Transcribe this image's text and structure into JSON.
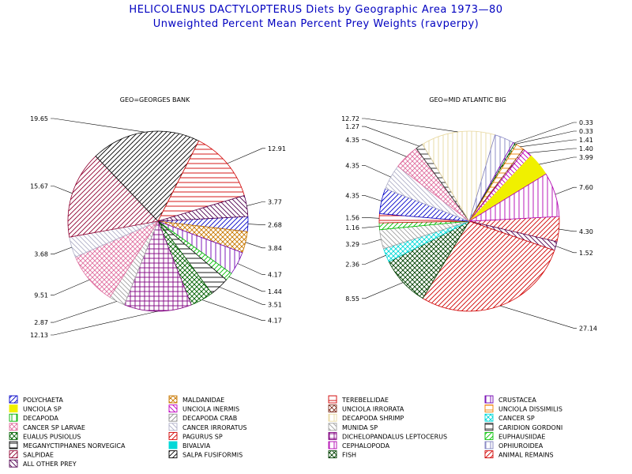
{
  "header": {
    "title": "HELICOLENUS DACTYLOPTERUS Diets by Geographic Area 1973—80",
    "subtitle": "Unweighted Percent Mean Percent Prey  Weights (ravperpy)"
  },
  "chart_data": [
    {
      "type": "pie",
      "title": "GEO=GEORGES BANK",
      "slices": [
        {
          "label": "POLYCHAETA",
          "value": 2.68
        },
        {
          "label": "MALDANIDAE",
          "value": 3.84
        },
        {
          "label": "CRUSTACEA",
          "value": 4.17
        },
        {
          "label": "EUPHAUSIIDAE",
          "value": 1.44
        },
        {
          "label": "MEGANYCTIPHANES NORVEGICA",
          "value": 3.51
        },
        {
          "label": "EUALUS PUSIOLUS",
          "value": 4.17
        },
        {
          "label": "DICHELOPANDALUS LEPTOCERUS",
          "value": 12.13
        },
        {
          "label": "MUNIDA SP",
          "value": 2.87
        },
        {
          "label": "CANCER SP LARVAE",
          "value": 9.51
        },
        {
          "label": "CANCER IRRORATUS",
          "value": 3.68
        },
        {
          "label": "SALPIDAE",
          "value": 15.67
        },
        {
          "label": "SALPA FUSIFORMIS",
          "value": 19.65
        },
        {
          "label": "TEREBELLIDAE",
          "value": 12.91
        },
        {
          "label": "ALL OTHER PREY",
          "value": 3.77
        }
      ],
      "value_labels": [
        "2.68",
        "3.84",
        "4.17",
        "1.44",
        "3.51",
        "4.17",
        "12.13",
        "2.87",
        "9.51",
        "3.68",
        "15.67",
        "19.65",
        "12.91",
        "3.77"
      ]
    },
    {
      "type": "pie",
      "title": "GEO=MID ATLANTIC BIG",
      "slices": [
        {
          "label": "PAGURUS SP",
          "value": 4.3
        },
        {
          "label": "ALL OTHER PREY",
          "value": 1.52
        },
        {
          "label": "ANIMAL REMAINS",
          "value": 27.14
        },
        {
          "label": "FISH",
          "value": 8.55
        },
        {
          "label": "CANCER SP",
          "value": 2.36
        },
        {
          "label": "MUNIDA SP",
          "value": 3.29
        },
        {
          "label": "EUPHAUSIIDAE",
          "value": 1.16
        },
        {
          "label": "TEREBELLIDAE",
          "value": 1.56
        },
        {
          "label": "POLYCHAETA",
          "value": 4.35
        },
        {
          "label": "CANCER IRRORATUS",
          "value": 4.35
        },
        {
          "label": "CANCER SP LARVAE",
          "value": 4.35
        },
        {
          "label": "CARIDION GORDONI",
          "value": 1.27
        },
        {
          "label": "DECAPODA SHRIMP",
          "value": 12.72
        },
        {
          "label": "OPHIUROIDEA",
          "value": 3.33
        },
        {
          "label": "CRUSTACEA",
          "value": 0.33
        },
        {
          "label": "EUALUS PUSIOLUS",
          "value": 0.33
        },
        {
          "label": "UNCIOLA DISSIMILIS",
          "value": 1.41
        },
        {
          "label": "UNCIOLA IRRORATA",
          "value": 0.3
        },
        {
          "label": "UNCIOLA INERMIS",
          "value": 1.4
        },
        {
          "label": "UNCIOLA SP",
          "value": 3.99
        },
        {
          "label": "CEPHALOPODA",
          "value": 7.6
        }
      ],
      "value_labels": [
        "4.30",
        "1.52",
        "27.14",
        "8.55",
        "2.36",
        "3.29",
        "1.16",
        "1.56",
        "4.35",
        "4.35",
        "4.35",
        "1.27",
        "12.72",
        "",
        "0.33",
        "0.33",
        "1.41",
        "",
        "1.40",
        "3.99",
        "7.60"
      ]
    }
  ],
  "legend": {
    "items": [
      {
        "label": "POLYCHAETA",
        "color": "#0000c8",
        "pattern": "fwd"
      },
      {
        "label": "MALDANIDAE",
        "color": "#c87800",
        "pattern": "cross"
      },
      {
        "label": "TEREBELLIDAE",
        "color": "#d00000",
        "pattern": "horiz"
      },
      {
        "label": "CRUSTACEA",
        "color": "#7000b0",
        "pattern": "vert"
      },
      {
        "label": "UNCIOLA SP",
        "color": "#f0f000",
        "pattern": "solid"
      },
      {
        "label": "UNCIOLA INERMIS",
        "color": "#c000c0",
        "pattern": "back"
      },
      {
        "label": "UNCIOLA IRRORATA",
        "color": "#803020",
        "pattern": "cross"
      },
      {
        "label": "UNCIOLA DISSIMILIS",
        "color": "#f08000",
        "pattern": "horiz"
      },
      {
        "label": "DECAPODA",
        "color": "#00b000",
        "pattern": "vert"
      },
      {
        "label": "DECAPODA CRAB",
        "color": "#909090",
        "pattern": "fwd"
      },
      {
        "label": "DECAPODA SHRIMP",
        "color": "#e8d8a0",
        "pattern": "vert"
      },
      {
        "label": "CANCER SP",
        "color": "#00d8d8",
        "pattern": "cross"
      },
      {
        "label": "CANCER SP LARVAE",
        "color": "#e070a0",
        "pattern": "cross"
      },
      {
        "label": "CANCER IRRORATUS",
        "color": "#b0b0c8",
        "pattern": "back"
      },
      {
        "label": "MUNIDA SP",
        "color": "#a0a0a0",
        "pattern": "back"
      },
      {
        "label": "CARIDION GORDONI",
        "color": "#202020",
        "pattern": "horiz"
      },
      {
        "label": "EUALUS PUSIOLUS",
        "color": "#006000",
        "pattern": "cross"
      },
      {
        "label": "PAGURUS SP",
        "color": "#d00000",
        "pattern": "fwd"
      },
      {
        "label": "DICHELOPANDALUS LEPTOCERUS",
        "color": "#800080",
        "pattern": "grid"
      },
      {
        "label": "EUPHAUSIIDAE",
        "color": "#00c000",
        "pattern": "fwd"
      },
      {
        "label": "MEGANYCTIPHANES NORVEGICA",
        "color": "#000000",
        "pattern": "horiz"
      },
      {
        "label": "BIVALVIA",
        "color": "#00d8d8",
        "pattern": "solid"
      },
      {
        "label": "CEPHALOPODA",
        "color": "#b000b0",
        "pattern": "vert"
      },
      {
        "label": "OPHIUROIDEA",
        "color": "#8080c0",
        "pattern": "vert"
      },
      {
        "label": "SALPIDAE",
        "color": "#900030",
        "pattern": "fwd"
      },
      {
        "label": "SALPA FUSIFORMIS",
        "color": "#000000",
        "pattern": "fwd"
      },
      {
        "label": "FISH",
        "color": "#004000",
        "pattern": "cross"
      },
      {
        "label": "ANIMAL REMAINS",
        "color": "#d00000",
        "pattern": "fwd"
      },
      {
        "label": "ALL OTHER PREY",
        "color": "#500050",
        "pattern": "back"
      }
    ]
  }
}
